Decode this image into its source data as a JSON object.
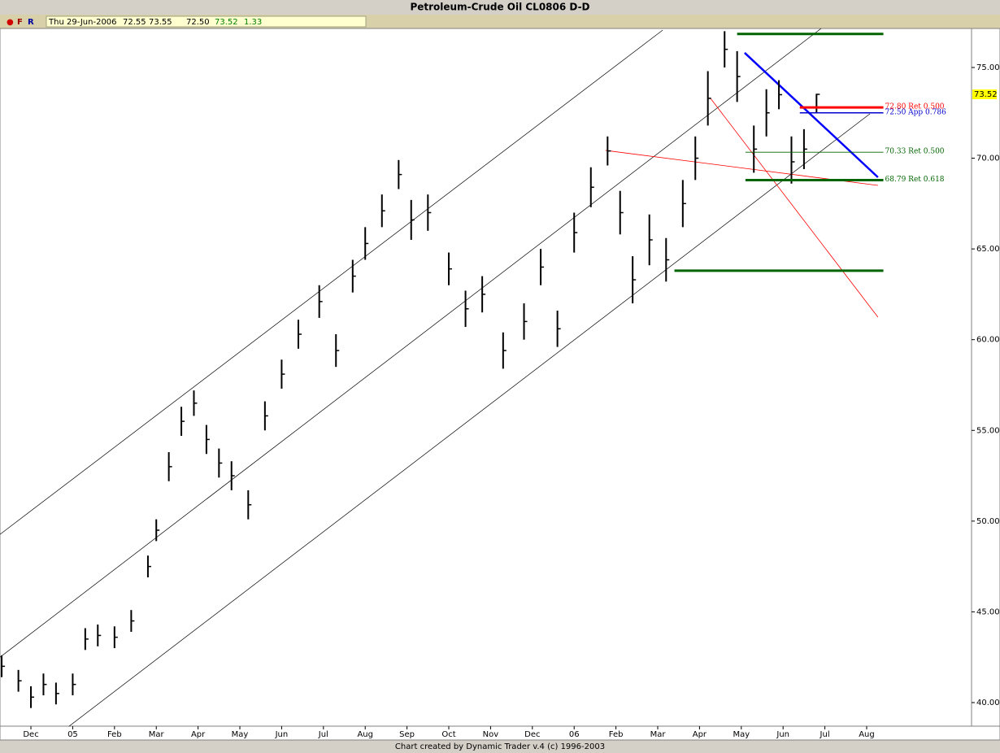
{
  "toolbar": {
    "markers": [
      "●",
      "F",
      "R"
    ],
    "date": "Thu 29-Jun-2006",
    "open": "72.55",
    "high": "73.55",
    "low": "72.50",
    "close": "73.52",
    "change": "1.33"
  },
  "credit": "Chart created by Dynamic Trader v.4  (c) 1996-2003",
  "chart_data": {
    "type": "ohlc",
    "title": "Petroleum-Crude Oil CL0806 D-D",
    "x": [
      -0.7,
      -0.3,
      0,
      0.3,
      0.6,
      1,
      1.3,
      1.6,
      2,
      2.4,
      2.8,
      3,
      3.3,
      3.6,
      3.9,
      4.2,
      4.5,
      4.8,
      5.2,
      5.6,
      6,
      6.4,
      6.9,
      7.3,
      7.7,
      8,
      8.4,
      8.8,
      9.1,
      9.5,
      10,
      10.4,
      10.8,
      11.3,
      11.8,
      12.2,
      12.6,
      13,
      13.4,
      13.8,
      14.1,
      14.4,
      14.8,
      15.2,
      15.6,
      15.9,
      16.2,
      16.6,
      16.9,
      17.3,
      17.6,
      17.9,
      18.2,
      18.5,
      18.8
    ],
    "high": [
      42.6,
      41.8,
      40.9,
      41.6,
      41.1,
      41.6,
      44.1,
      44.3,
      44.2,
      45.1,
      48.1,
      50.1,
      53.8,
      56.3,
      57.2,
      55.3,
      54,
      53.3,
      51.7,
      56.6,
      58.9,
      61.1,
      63,
      60.3,
      64.4,
      66.2,
      68,
      69.9,
      67.7,
      68,
      64.8,
      62.7,
      63.5,
      60.4,
      62,
      65,
      61.6,
      67,
      69.5,
      71.2,
      68.2,
      64.6,
      66.9,
      65.6,
      68.8,
      71.2,
      74.8,
      77,
      75.9,
      71.8,
      73.8,
      74.3,
      71.2,
      71.6,
      73.55
    ],
    "low": [
      41.4,
      40.6,
      39.7,
      40.4,
      39.9,
      40.4,
      42.9,
      43.1,
      43,
      43.9,
      46.9,
      48.9,
      52.2,
      54.7,
      55.8,
      53.7,
      52.4,
      51.7,
      50.1,
      55,
      57.3,
      59.5,
      61.2,
      58.5,
      62.6,
      64.4,
      66.2,
      68.3,
      65.5,
      66,
      63,
      60.7,
      61.5,
      58.4,
      60,
      63,
      59.6,
      64.8,
      67.3,
      69.6,
      65.8,
      62,
      64.1,
      63.2,
      66.2,
      68.8,
      71.8,
      75,
      73.1,
      69.2,
      71.2,
      72.7,
      68.6,
      69.4,
      72.5
    ],
    "close": [
      42,
      41.2,
      40.3,
      41,
      40.5,
      41,
      43.5,
      43.7,
      43.6,
      44.5,
      47.5,
      49.5,
      53,
      55.5,
      56.5,
      54.5,
      53.2,
      52.5,
      50.9,
      55.8,
      58.1,
      60.3,
      62.1,
      59.4,
      63.5,
      65.3,
      67.1,
      69.1,
      66.6,
      67,
      63.9,
      61.7,
      62.5,
      59.4,
      61,
      64,
      60.6,
      65.9,
      68.4,
      70.4,
      67,
      63.3,
      65.5,
      64.4,
      67.5,
      70,
      73.3,
      76,
      74.5,
      70.5,
      72.5,
      73.5,
      69.8,
      70.5,
      73.52
    ],
    "color": "#000000",
    "xlim": [
      -0.74,
      22.51
    ],
    "ylim": [
      38.7,
      77.15
    ],
    "xticks": [
      {
        "value": 0,
        "label": "Dec"
      },
      {
        "value": 1,
        "label": "05"
      },
      {
        "value": 2,
        "label": "Feb"
      },
      {
        "value": 3,
        "label": "Mar"
      },
      {
        "value": 4,
        "label": "Apr"
      },
      {
        "value": 5,
        "label": "May"
      },
      {
        "value": 6,
        "label": "Jun"
      },
      {
        "value": 7,
        "label": "Jul"
      },
      {
        "value": 8,
        "label": "Aug"
      },
      {
        "value": 9,
        "label": "Sep"
      },
      {
        "value": 10,
        "label": "Oct"
      },
      {
        "value": 11,
        "label": "Nov"
      },
      {
        "value": 12,
        "label": "Dec"
      },
      {
        "value": 13,
        "label": "06"
      },
      {
        "value": 14,
        "label": "Feb"
      },
      {
        "value": 15,
        "label": "Mar"
      },
      {
        "value": 16,
        "label": "Apr"
      },
      {
        "value": 17,
        "label": "May"
      },
      {
        "value": 18,
        "label": "Jun"
      },
      {
        "value": 19,
        "label": "Jul"
      },
      {
        "value": 20,
        "label": "Aug"
      }
    ],
    "yticks": [
      {
        "value": 40,
        "label": "40.00"
      },
      {
        "value": 45,
        "label": "45.00"
      },
      {
        "value": 50,
        "label": "50.00"
      },
      {
        "value": 55,
        "label": "55.00"
      },
      {
        "value": 60,
        "label": "60.00"
      },
      {
        "value": 65,
        "label": "65.00"
      },
      {
        "value": 70,
        "label": "70.00"
      },
      {
        "value": 75,
        "label": "75.00"
      }
    ],
    "last_price": 73.52,
    "last_price_color": "#ffff00",
    "lines": [
      {
        "x": [
          -0.74,
          15.12
        ],
        "y": [
          49.27,
          77.06
        ],
        "color": "#000000",
        "width": 0.7
      },
      {
        "x": [
          -0.74,
          18.91
        ],
        "y": [
          42.5,
          77.15
        ],
        "color": "#000000",
        "width": 0.7
      },
      {
        "x": [
          0.91,
          20.08
        ],
        "y": [
          38.69,
          72.45
        ],
        "color": "#000000",
        "width": 0.7
      },
      {
        "x": [
          17.08,
          20.27
        ],
        "y": [
          75.81,
          68.95
        ],
        "color": "#0000ff",
        "width": 2.5
      },
      {
        "x": [
          13.75,
          20.27
        ],
        "y": [
          70.43,
          68.5
        ],
        "color": "#ff0000",
        "width": 0.8
      },
      {
        "x": [
          16.25,
          20.27
        ],
        "y": [
          73.34,
          61.24
        ],
        "color": "#ff0000",
        "width": 0.8
      }
    ],
    "levels": [
      {
        "price": 76.85,
        "x": [
          16.9,
          20.4
        ],
        "color": "#006400",
        "width": 3
      },
      {
        "price": 63.8,
        "x": [
          15.4,
          20.4
        ],
        "color": "#006400",
        "width": 3
      },
      {
        "price": 72.8,
        "x": [
          18.4,
          20.4
        ],
        "color": "#ff0000",
        "width": 3,
        "label": "72.80 Ret 0.500"
      },
      {
        "price": 72.5,
        "x": [
          18.4,
          20.4
        ],
        "color": "#0000cc",
        "width": 1.5,
        "label": "72.50 App 0.786"
      },
      {
        "price": 70.33,
        "x": [
          17.1,
          20.4
        ],
        "color": "#006400",
        "width": 0.8,
        "label": "70.33 Ret 0.500"
      },
      {
        "price": 68.79,
        "x": [
          17.1,
          20.4
        ],
        "color": "#006400",
        "width": 3,
        "label": "68.79 Ret 0.618"
      }
    ]
  }
}
